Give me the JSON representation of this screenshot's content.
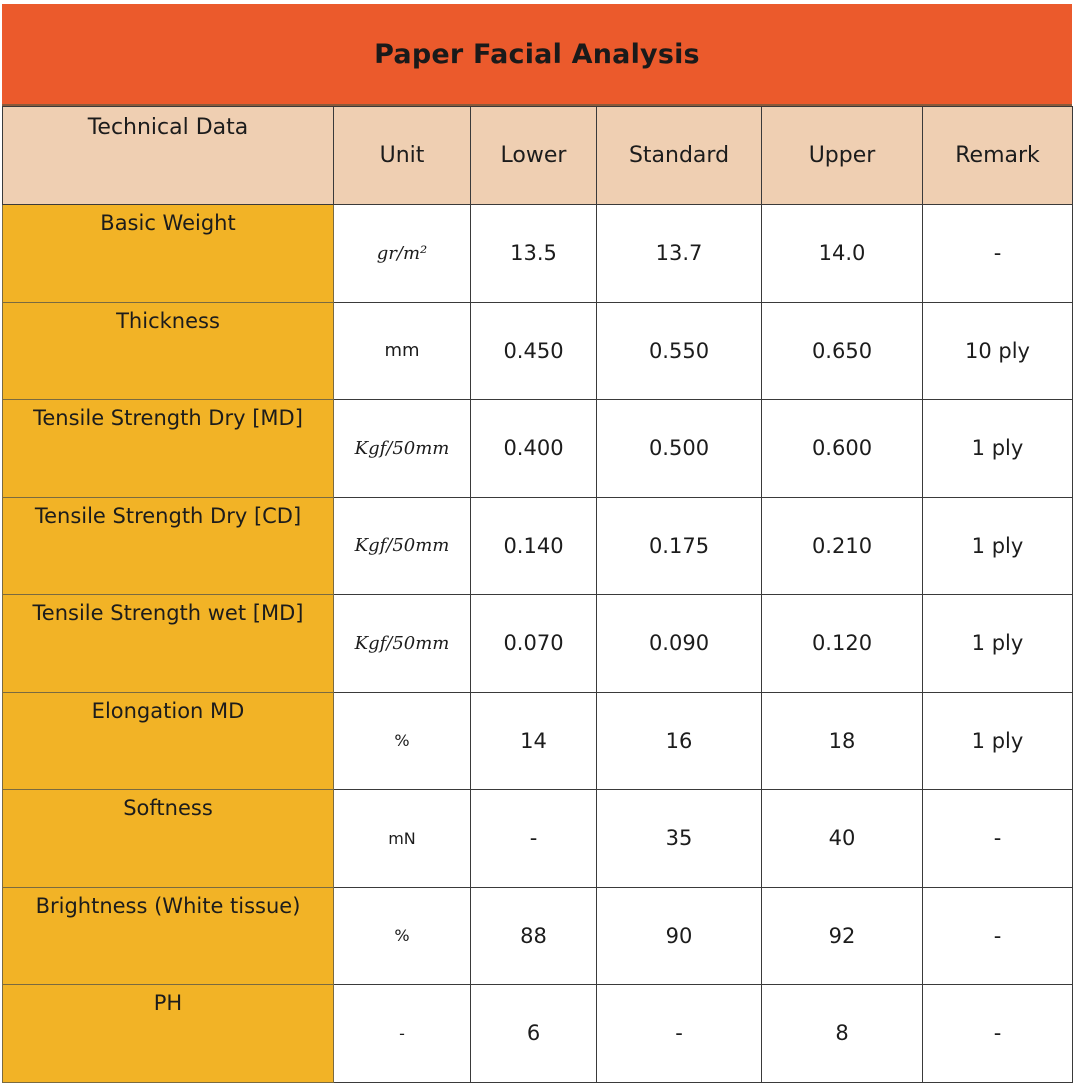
{
  "title": "Paper Facial Analysis",
  "colors": {
    "title_bar": "#eb5a2c",
    "header_row": "#efcfb2",
    "parameter_column": "#f2b326"
  },
  "headers": [
    "Technical Data",
    "Unit",
    "Lower",
    "Standard",
    "Upper",
    "Remark"
  ],
  "rows": [
    {
      "parameter": "Basic Weight",
      "unit": "gr/m²",
      "lower": "13.5",
      "standard": "13.7",
      "upper": "14.0",
      "remark": "-"
    },
    {
      "parameter": "Thickness",
      "unit": "mm",
      "lower": "0.450",
      "standard": "0.550",
      "upper": "0.650",
      "remark": "10 ply"
    },
    {
      "parameter": "Tensile Strength Dry [MD]",
      "unit": "Kgf/50mm",
      "lower": "0.400",
      "standard": "0.500",
      "upper": "0.600",
      "remark": "1 ply"
    },
    {
      "parameter": "Tensile Strength Dry [CD]",
      "unit": "Kgf/50mm",
      "lower": "0.140",
      "standard": "0.175",
      "upper": "0.210",
      "remark": "1 ply"
    },
    {
      "parameter": "Tensile Strength wet [MD]",
      "unit": "Kgf/50mm",
      "lower": "0.070",
      "standard": "0.090",
      "upper": "0.120",
      "remark": "1 ply"
    },
    {
      "parameter": "Elongation MD",
      "unit": "%",
      "lower": "14",
      "standard": "16",
      "upper": "18",
      "remark": "1 ply"
    },
    {
      "parameter": "Softness",
      "unit": "mN",
      "lower": "-",
      "standard": "35",
      "upper": "40",
      "remark": "-"
    },
    {
      "parameter": "Brightness (White tissue)",
      "unit": "%",
      "lower": "88",
      "standard": "90",
      "upper": "92",
      "remark": "-"
    },
    {
      "parameter": "PH",
      "unit": "-",
      "lower": "6",
      "standard": "-",
      "upper": "8",
      "remark": "-"
    }
  ]
}
